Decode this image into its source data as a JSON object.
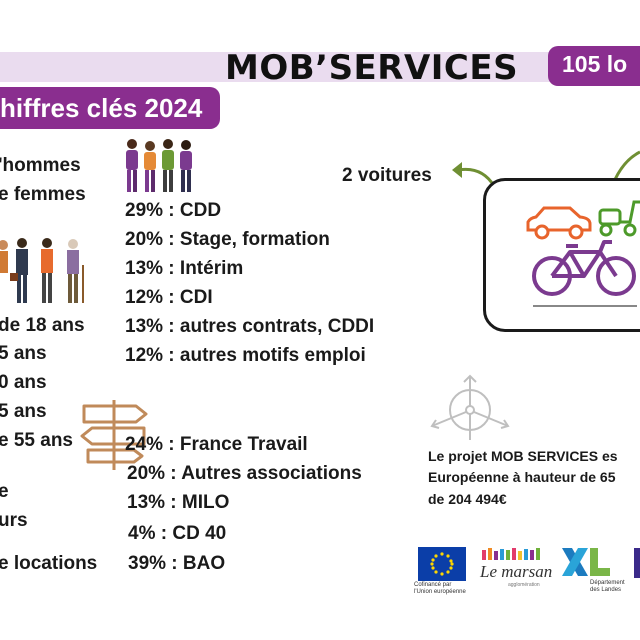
{
  "header": {
    "title": "MOB’SERVICES",
    "locations_badge": "105 lo",
    "chiffres_badge": "hiffres clés 2024"
  },
  "gender": {
    "men": "'hommes",
    "women": "e femmes"
  },
  "contracts": [
    "29% : CDD",
    "20% : Stage, formation",
    "13% : Intérim",
    "12% : CDI",
    "13% : autres contrats, CDDI",
    "12% : autres motifs emploi"
  ],
  "ages": [
    "de 18 ans",
    "5 ans",
    "0 ans",
    "5 ans",
    "e 55 ans"
  ],
  "prescribers": [
    "24% : France Travail",
    "20% : Autres associations",
    "13% : MILO",
    "4% : CD 40",
    "39% : BAO"
  ],
  "left_misc": [
    "e",
    "urs",
    "e locations"
  ],
  "vehicles": {
    "cars_label": "2 voitures",
    "colors": {
      "car": "#e8642c",
      "scooter": "#4d9a2a",
      "bike": "#7b3a8f",
      "arrow": "#6f8f33"
    }
  },
  "project": {
    "lines": [
      "Le projet MOB SERVICES es",
      "Européenne à hauteur de 65",
      "de 204 494€"
    ]
  },
  "logos": {
    "eu_caption_1": "Cofinancé par",
    "eu_caption_2": "l'Union européenne",
    "marsan": "Le marsan",
    "marsan_sub": "agglomération",
    "xl_caption_1": "Département",
    "xl_caption_2": "des Landes"
  },
  "accent_color": "#8a2e8f"
}
